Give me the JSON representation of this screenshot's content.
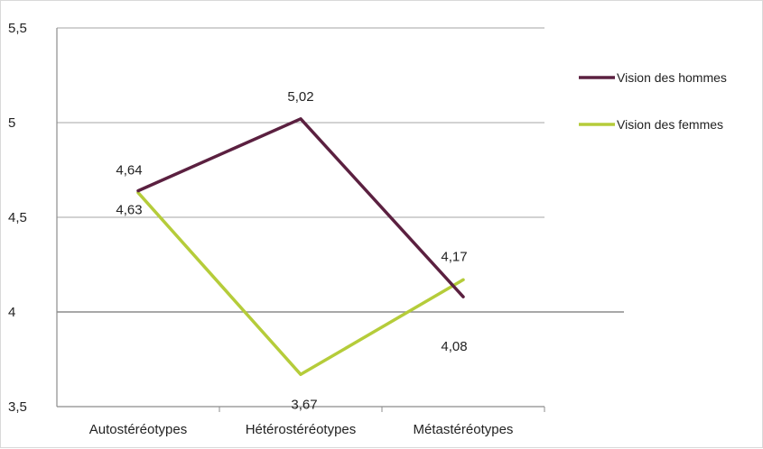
{
  "chart_data": {
    "type": "line",
    "categories": [
      "Autostéréotypes",
      "Hétérostéréotypes",
      "Métastéréotypes"
    ],
    "series": [
      {
        "name": "Vision des hommes",
        "values": [
          4.64,
          5.02,
          4.08
        ],
        "labels": [
          "4,64",
          "5,02",
          "4,08"
        ],
        "color": "#5b2040"
      },
      {
        "name": "Vision des femmes",
        "values": [
          4.63,
          3.67,
          4.17
        ],
        "labels": [
          "4,63",
          "3,67",
          "4,17"
        ],
        "color": "#b5cc3a"
      }
    ],
    "yticks": [
      "3,5",
      "4",
      "4,5",
      "5",
      "5,5"
    ],
    "ylim": [
      3.5,
      5.5
    ],
    "grid": true,
    "legend_position": "right"
  }
}
